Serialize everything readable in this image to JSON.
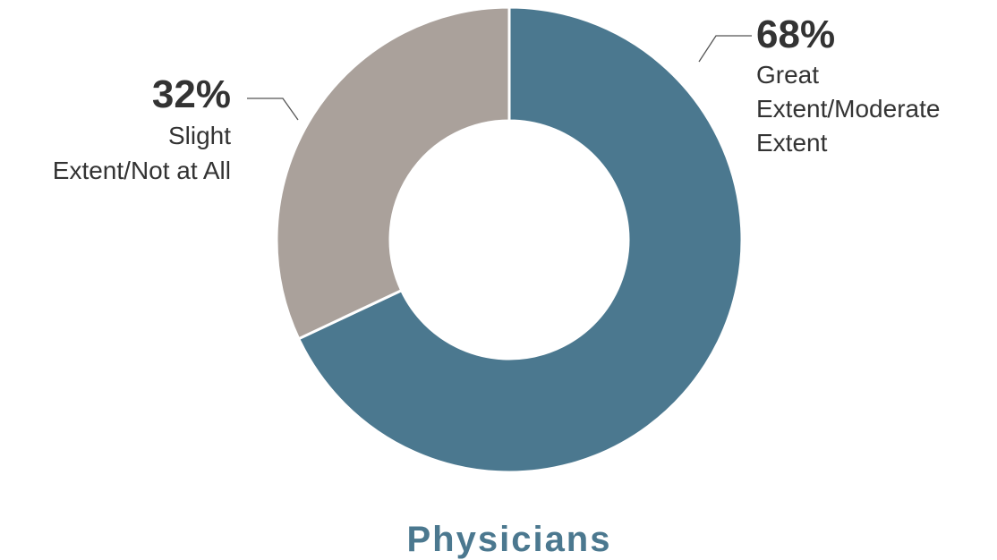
{
  "chart_data": {
    "type": "pie",
    "donut": true,
    "title": "Physicians",
    "categories": [
      "Great Extent/Moderate Extent",
      "Slight Extent/Not at All"
    ],
    "values": [
      68,
      32
    ],
    "value_labels": [
      "68%",
      "32%"
    ],
    "label_lines": [
      [
        "Great",
        "Extent/Moderate",
        "Extent"
      ],
      [
        "Slight",
        "Extent/Not at All"
      ]
    ],
    "colors": [
      "#4b788f",
      "#aaa19b"
    ],
    "title_color": "#4b788f"
  }
}
